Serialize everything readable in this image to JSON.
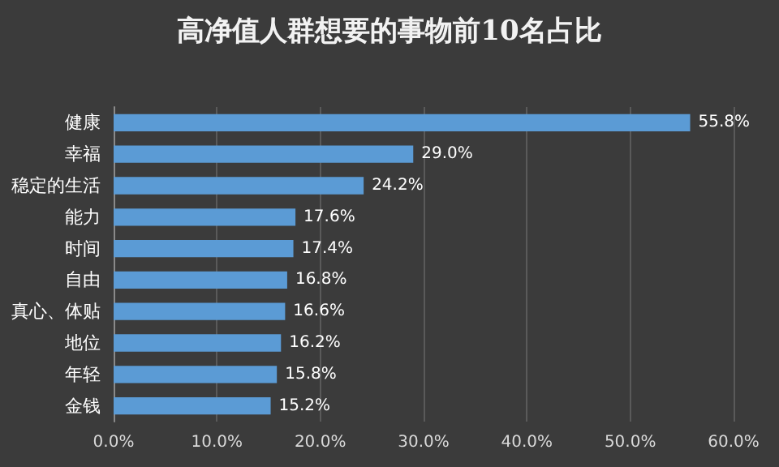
{
  "chart_data": {
    "type": "bar",
    "orientation": "horizontal",
    "title": "高净值人群想要的事物前10名占比",
    "categories": [
      "健康",
      "幸福",
      "稳定的生活",
      "能力",
      "时间",
      "自由",
      "真心、体贴",
      "地位",
      "年轻",
      "金钱"
    ],
    "values": [
      55.8,
      29.0,
      24.2,
      17.6,
      17.4,
      16.8,
      16.6,
      16.2,
      15.8,
      15.2
    ],
    "value_labels": [
      "55.8%",
      "29.0%",
      "24.2%",
      "17.6%",
      "17.4%",
      "16.8%",
      "16.6%",
      "16.2%",
      "15.8%",
      "15.2%"
    ],
    "color": "#5b9bd5",
    "xlim": [
      0,
      60
    ],
    "xticks": [
      {
        "value": 0,
        "label": "0.0%"
      },
      {
        "value": 10,
        "label": "10.0%"
      },
      {
        "value": 20,
        "label": "20.0%"
      },
      {
        "value": 30,
        "label": "30.0%"
      },
      {
        "value": 40,
        "label": "40.0%"
      },
      {
        "value": 50,
        "label": "50.0%"
      },
      {
        "value": 60,
        "label": "60.0%"
      }
    ],
    "grid": "x"
  }
}
